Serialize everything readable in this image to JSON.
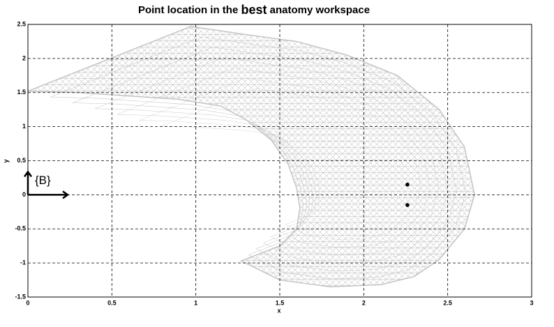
{
  "chart_data": {
    "type": "scatter",
    "title_parts": [
      "Point location in the",
      "best",
      "anatomy workspace"
    ],
    "x_label": "x",
    "y_label": "y",
    "annotation": "{B}",
    "xlim": [
      0,
      3
    ],
    "ylim": [
      -1.5,
      2.5
    ],
    "xticks": [
      0,
      0.5,
      1,
      1.5,
      2,
      2.5,
      3
    ],
    "yticks": [
      -1.5,
      -1,
      -0.5,
      0,
      0.5,
      1,
      1.5,
      2,
      2.5
    ],
    "grid": true,
    "workspace": {
      "color": "#c4c4c4",
      "x": [
        0,
        0.97,
        1.3,
        1.6,
        1.9,
        2.2,
        2.45,
        2.6,
        2.66,
        2.6,
        2.45,
        2.3,
        2.1,
        1.8,
        1.5,
        1.27,
        1.5,
        1.6,
        1.62,
        1.6,
        1.55,
        1.45,
        1.3,
        1.15,
        0.9,
        0.6,
        0.3,
        0
      ],
      "y": [
        1.52,
        2.47,
        2.35,
        2.25,
        2.05,
        1.75,
        1.25,
        0.7,
        0,
        -0.5,
        -0.95,
        -1.2,
        -1.32,
        -1.35,
        -1.25,
        -0.97,
        -0.75,
        -0.5,
        -0.2,
        0.1,
        0.45,
        0.8,
        1.1,
        1.3,
        1.4,
        1.45,
        1.5,
        1.52
      ]
    },
    "points": {
      "color": "#000000",
      "x": [
        2.26,
        2.26
      ],
      "y": [
        0.15,
        -0.15
      ]
    }
  }
}
